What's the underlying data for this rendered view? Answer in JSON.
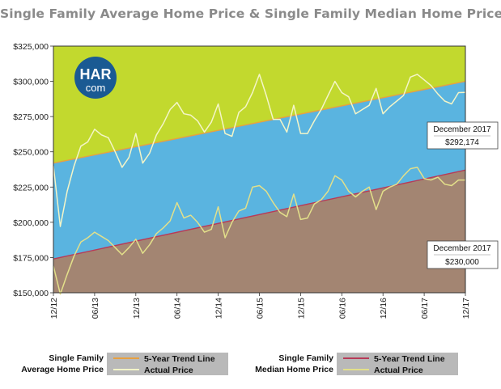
{
  "title": "Single Family Average Home Price & Single Family Median Home Price",
  "logo": {
    "line1": "HAR",
    "line2": "com"
  },
  "colors": {
    "green_band": "#c2d92e",
    "blue_band": "#5ab4e0",
    "brown_band": "#a38572",
    "avg_actual": "#f4f5c8",
    "median_actual": "#e3e08a",
    "avg_trend": "#e8a040",
    "median_trend": "#b83a58",
    "logo_bg": "#1a5a93"
  },
  "callouts": [
    {
      "label": "December 2017",
      "value": "$292,174"
    },
    {
      "label": "December 2017",
      "value": "$230,000"
    }
  ],
  "legend": {
    "left": {
      "title": [
        "Single Family",
        "Average Home Price"
      ],
      "items": [
        "5-Year Trend Line",
        "Actual Price"
      ]
    },
    "right": {
      "title": [
        "Single Family",
        "Median Home Price"
      ],
      "items": [
        "5-Year Trend Line",
        "Actual Price"
      ]
    }
  },
  "chart_data": {
    "type": "line",
    "ylim": [
      150000,
      325000
    ],
    "y_ticks": [
      "$150,000",
      "$175,000",
      "$200,000",
      "$225,000",
      "$250,000",
      "$275,000",
      "$300,000",
      "$325,000"
    ],
    "x_tick_labels": [
      "12/12",
      "06/13",
      "12/13",
      "06/14",
      "12/14",
      "06/15",
      "12/15",
      "06/16",
      "12/16",
      "06/17",
      "12/17"
    ],
    "x_range": [
      "12/12",
      "12/17"
    ],
    "series": [
      {
        "name": "Single Family Average Home Price - Actual Price",
        "values": [
          240000,
          197000,
          222000,
          240000,
          254000,
          257000,
          266000,
          262000,
          260000,
          250000,
          239000,
          246000,
          263000,
          242000,
          249000,
          262000,
          270000,
          280000,
          285000,
          277000,
          276000,
          272000,
          264000,
          271000,
          284000,
          263000,
          261000,
          278000,
          282000,
          292000,
          305000,
          290000,
          273000,
          273000,
          264000,
          283000,
          263000,
          263000,
          272000,
          280000,
          290000,
          300000,
          292000,
          289000,
          277000,
          280000,
          283000,
          295000,
          277000,
          282000,
          286000,
          290000,
          303000,
          305000,
          301000,
          297000,
          291000,
          286000,
          284000,
          292000,
          292174
        ]
      },
      {
        "name": "Single Family Median Home Price - Actual Price",
        "values": [
          169000,
          149000,
          163000,
          176000,
          186000,
          189000,
          193000,
          190000,
          187000,
          182000,
          177000,
          182000,
          188000,
          178000,
          184000,
          192000,
          196000,
          201000,
          214000,
          203000,
          205000,
          200000,
          193000,
          195000,
          211000,
          189000,
          200000,
          208000,
          210000,
          225000,
          226000,
          222000,
          214000,
          207000,
          204000,
          220000,
          202000,
          203000,
          213000,
          216000,
          222000,
          233000,
          230000,
          222000,
          218000,
          222000,
          225000,
          209000,
          222000,
          225000,
          227000,
          233000,
          238000,
          239000,
          231000,
          230000,
          232000,
          227000,
          226000,
          230000,
          230000
        ]
      },
      {
        "name": "Single Family Average Home Price - 5-Year Trend Line",
        "values": [
          242000,
          300000
        ]
      },
      {
        "name": "Single Family Median Home Price - 5-Year Trend Line",
        "values": [
          174000,
          237000
        ]
      }
    ]
  }
}
